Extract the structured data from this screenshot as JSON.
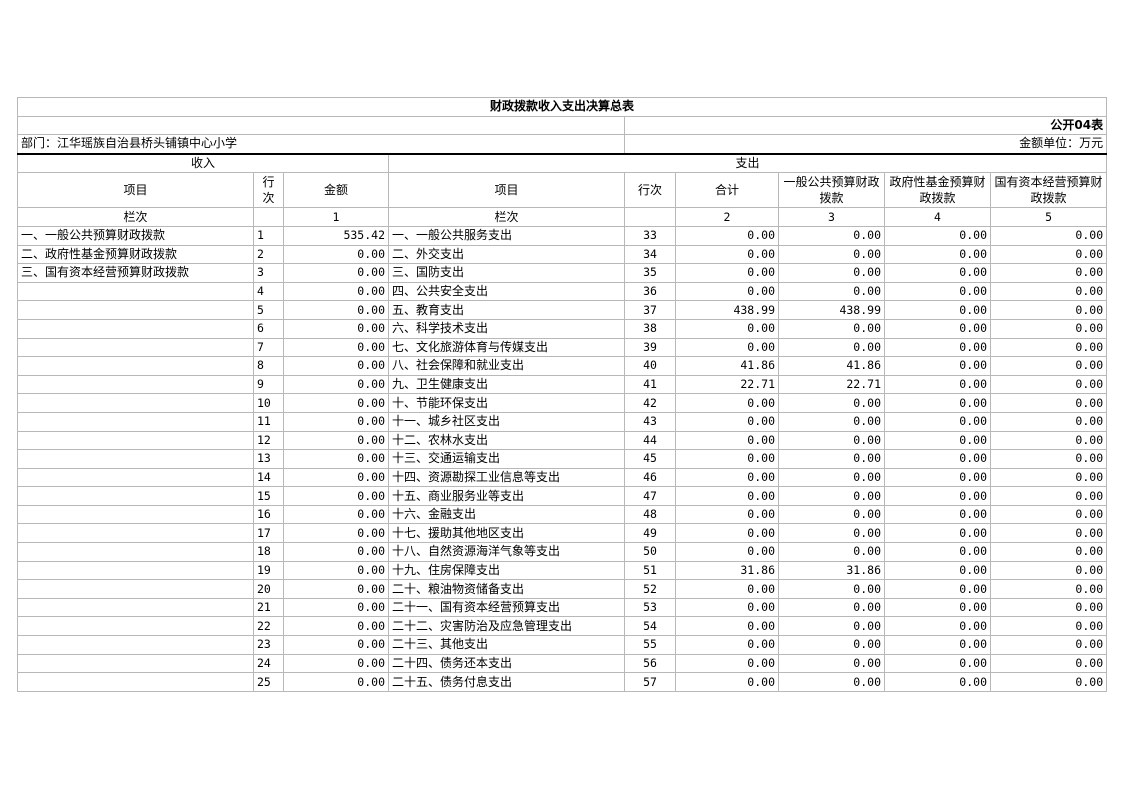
{
  "title": "财政拨款收入支出决算总表",
  "table_code": "公开04表",
  "department": "部门：江华瑶族自治县桥头铺镇中心小学",
  "unit": "金额单位：万元",
  "income_header": "收入",
  "expense_header": "支出",
  "columns": {
    "item": "项目",
    "line": "行\n次",
    "amount": "金额",
    "exp_item": "项目",
    "exp_line": "行次",
    "total": "合计",
    "general": "一般公共预算财政拨款",
    "fund": "政府性基金预算财政拨款",
    "state": "国有资本经营预算财政拨款"
  },
  "col_index": {
    "label": "栏次",
    "income": "1",
    "c2": "2",
    "c3": "3",
    "c4": "4",
    "c5": "5"
  },
  "rows": [
    [
      "一、一般公共预算财政拨款",
      "1",
      "535.42",
      "一、一般公共服务支出",
      "33",
      "0.00",
      "0.00",
      "0.00",
      "0.00"
    ],
    [
      "二、政府性基金预算财政拨款",
      "2",
      "0.00",
      "二、外交支出",
      "34",
      "0.00",
      "0.00",
      "0.00",
      "0.00"
    ],
    [
      "三、国有资本经营预算财政拨款",
      "3",
      "0.00",
      "三、国防支出",
      "35",
      "0.00",
      "0.00",
      "0.00",
      "0.00"
    ],
    [
      "",
      "4",
      "0.00",
      "四、公共安全支出",
      "36",
      "0.00",
      "0.00",
      "0.00",
      "0.00"
    ],
    [
      "",
      "5",
      "0.00",
      "五、教育支出",
      "37",
      "438.99",
      "438.99",
      "0.00",
      "0.00"
    ],
    [
      "",
      "6",
      "0.00",
      "六、科学技术支出",
      "38",
      "0.00",
      "0.00",
      "0.00",
      "0.00"
    ],
    [
      "",
      "7",
      "0.00",
      "七、文化旅游体育与传媒支出",
      "39",
      "0.00",
      "0.00",
      "0.00",
      "0.00"
    ],
    [
      "",
      "8",
      "0.00",
      "八、社会保障和就业支出",
      "40",
      "41.86",
      "41.86",
      "0.00",
      "0.00"
    ],
    [
      "",
      "9",
      "0.00",
      "九、卫生健康支出",
      "41",
      "22.71",
      "22.71",
      "0.00",
      "0.00"
    ],
    [
      "",
      "10",
      "0.00",
      "十、节能环保支出",
      "42",
      "0.00",
      "0.00",
      "0.00",
      "0.00"
    ],
    [
      "",
      "11",
      "0.00",
      "十一、城乡社区支出",
      "43",
      "0.00",
      "0.00",
      "0.00",
      "0.00"
    ],
    [
      "",
      "12",
      "0.00",
      "十二、农林水支出",
      "44",
      "0.00",
      "0.00",
      "0.00",
      "0.00"
    ],
    [
      "",
      "13",
      "0.00",
      "十三、交通运输支出",
      "45",
      "0.00",
      "0.00",
      "0.00",
      "0.00"
    ],
    [
      "",
      "14",
      "0.00",
      "十四、资源勘探工业信息等支出",
      "46",
      "0.00",
      "0.00",
      "0.00",
      "0.00"
    ],
    [
      "",
      "15",
      "0.00",
      "十五、商业服务业等支出",
      "47",
      "0.00",
      "0.00",
      "0.00",
      "0.00"
    ],
    [
      "",
      "16",
      "0.00",
      "十六、金融支出",
      "48",
      "0.00",
      "0.00",
      "0.00",
      "0.00"
    ],
    [
      "",
      "17",
      "0.00",
      "十七、援助其他地区支出",
      "49",
      "0.00",
      "0.00",
      "0.00",
      "0.00"
    ],
    [
      "",
      "18",
      "0.00",
      "十八、自然资源海洋气象等支出",
      "50",
      "0.00",
      "0.00",
      "0.00",
      "0.00"
    ],
    [
      "",
      "19",
      "0.00",
      "十九、住房保障支出",
      "51",
      "31.86",
      "31.86",
      "0.00",
      "0.00"
    ],
    [
      "",
      "20",
      "0.00",
      "二十、粮油物资储备支出",
      "52",
      "0.00",
      "0.00",
      "0.00",
      "0.00"
    ],
    [
      "",
      "21",
      "0.00",
      "二十一、国有资本经营预算支出",
      "53",
      "0.00",
      "0.00",
      "0.00",
      "0.00"
    ],
    [
      "",
      "22",
      "0.00",
      "二十二、灾害防治及应急管理支出",
      "54",
      "0.00",
      "0.00",
      "0.00",
      "0.00"
    ],
    [
      "",
      "23",
      "0.00",
      "二十三、其他支出",
      "55",
      "0.00",
      "0.00",
      "0.00",
      "0.00"
    ],
    [
      "",
      "24",
      "0.00",
      "二十四、债务还本支出",
      "56",
      "0.00",
      "0.00",
      "0.00",
      "0.00"
    ],
    [
      "",
      "25",
      "0.00",
      "二十五、债务付息支出",
      "57",
      "0.00",
      "0.00",
      "0.00",
      "0.00"
    ]
  ]
}
